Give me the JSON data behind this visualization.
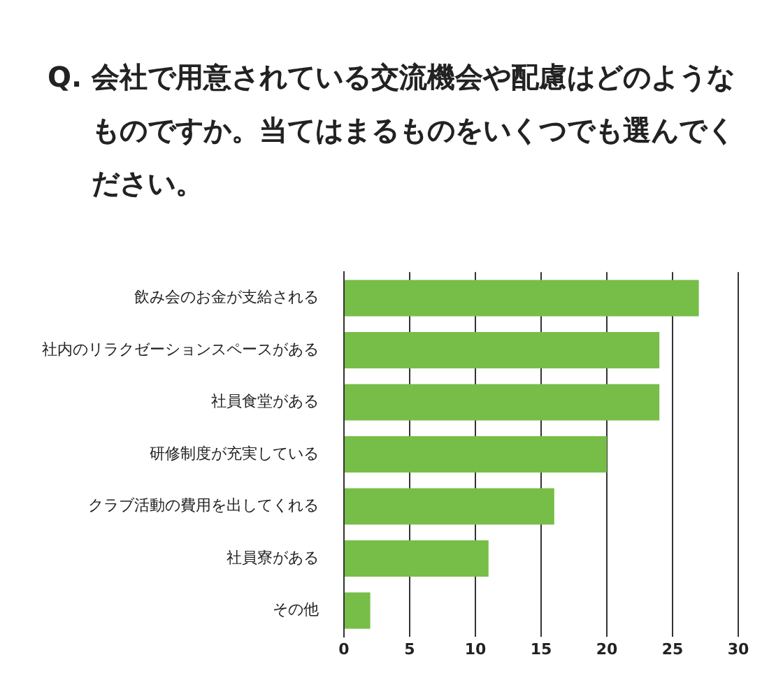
{
  "chart_data": {
    "type": "bar",
    "title": "Q. 会社で用意されている交流機会や配慮はどのようなものですか。当てはまるものをいくつでも選んでください。",
    "orientation": "horizontal",
    "categories": [
      "飲み会のお金が支給される",
      "社内のリラクゼーションスペースがある",
      "社員食堂がある",
      "研修制度が充実している",
      "クラブ活動の費用を出してくれる",
      "社員寮がある",
      "その他"
    ],
    "values": [
      27,
      24,
      24,
      20,
      16,
      11,
      2
    ],
    "color": "#77be48",
    "xlim": [
      0,
      30
    ],
    "xticks": [
      0,
      5,
      10,
      15,
      20,
      25,
      30
    ],
    "grid": "x",
    "legend": false
  }
}
